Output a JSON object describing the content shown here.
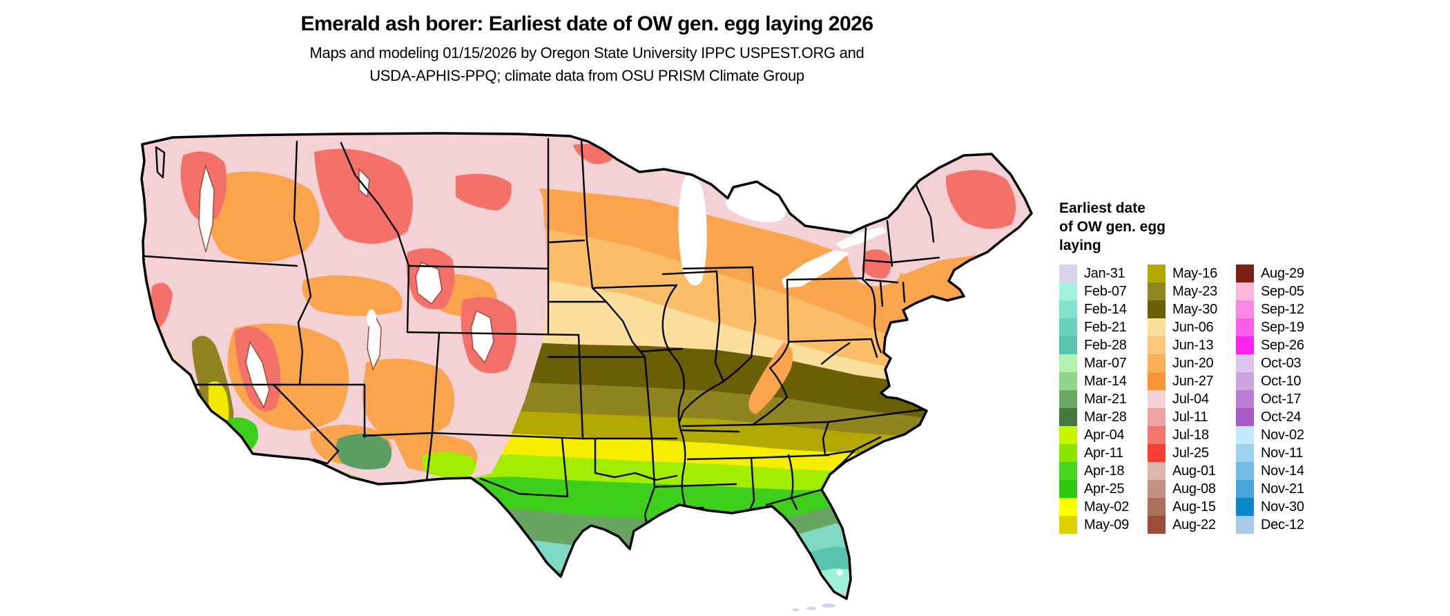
{
  "header": {
    "title": "Emerald ash borer: Earliest date of OW gen. egg laying 2026",
    "subtitle_line1": "Maps and modeling 01/15/2026 by Oregon State University IPPC USPEST.ORG and",
    "subtitle_line2": "USDA-APHIS-PPQ; climate data from OSU PRISM Climate Group"
  },
  "map": {
    "region": "Contiguous United States",
    "description": "Choropleth raster map of earliest date of overwintering generation egg laying, colored by weekly date class with state boundaries"
  },
  "legend": {
    "title_lines": [
      "Earliest date",
      "of OW gen. egg",
      "laying"
    ],
    "columns": [
      {
        "items": [
          {
            "label": "Jan-31",
            "color": "#d9d2ea"
          },
          {
            "label": "Feb-07",
            "color": "#a4f0dd"
          },
          {
            "label": "Feb-14",
            "color": "#83e2cd"
          },
          {
            "label": "Feb-21",
            "color": "#66d2bd"
          },
          {
            "label": "Feb-28",
            "color": "#55c3ae"
          },
          {
            "label": "Mar-07",
            "color": "#b3f2ae"
          },
          {
            "label": "Mar-14",
            "color": "#8dd588"
          },
          {
            "label": "Mar-21",
            "color": "#68a662"
          },
          {
            "label": "Mar-28",
            "color": "#447a40"
          },
          {
            "label": "Apr-04",
            "color": "#c9f500"
          },
          {
            "label": "Apr-11",
            "color": "#8ce500"
          },
          {
            "label": "Apr-18",
            "color": "#46d621"
          },
          {
            "label": "Apr-25",
            "color": "#2fc712"
          },
          {
            "label": "May-02",
            "color": "#ffff00"
          },
          {
            "label": "May-09",
            "color": "#ddd100"
          }
        ]
      },
      {
        "items": [
          {
            "label": "May-16",
            "color": "#b3a900"
          },
          {
            "label": "May-23",
            "color": "#8f8521"
          },
          {
            "label": "May-30",
            "color": "#6b5f06"
          },
          {
            "label": "Jun-06",
            "color": "#fcdf9c"
          },
          {
            "label": "Jun-13",
            "color": "#fcc679"
          },
          {
            "label": "Jun-20",
            "color": "#fcb057"
          },
          {
            "label": "Jun-27",
            "color": "#fa9538"
          },
          {
            "label": "Jul-04",
            "color": "#f3d3d5"
          },
          {
            "label": "Jul-11",
            "color": "#f0a1a3"
          },
          {
            "label": "Jul-18",
            "color": "#f4776f"
          },
          {
            "label": "Jul-25",
            "color": "#fc3d35"
          },
          {
            "label": "Aug-01",
            "color": "#dcb5ad"
          },
          {
            "label": "Aug-08",
            "color": "#c49285"
          },
          {
            "label": "Aug-15",
            "color": "#ac6e5d"
          },
          {
            "label": "Aug-22",
            "color": "#9c4d39"
          }
        ]
      },
      {
        "items": [
          {
            "label": "Aug-29",
            "color": "#7c2115"
          },
          {
            "label": "Sep-05",
            "color": "#fcb5dd"
          },
          {
            "label": "Sep-12",
            "color": "#fa87e5"
          },
          {
            "label": "Sep-19",
            "color": "#fa5de9"
          },
          {
            "label": "Sep-26",
            "color": "#fc25ed"
          },
          {
            "label": "Oct-03",
            "color": "#ddc5ed"
          },
          {
            "label": "Oct-10",
            "color": "#cca5e1"
          },
          {
            "label": "Oct-17",
            "color": "#b97dd5"
          },
          {
            "label": "Oct-24",
            "color": "#a65ac5"
          },
          {
            "label": "Nov-02",
            "color": "#c5e9fc"
          },
          {
            "label": "Nov-11",
            "color": "#9dd5f1"
          },
          {
            "label": "Nov-14",
            "color": "#71bde5"
          },
          {
            "label": "Nov-21",
            "color": "#45a5d9"
          },
          {
            "label": "Nov-30",
            "color": "#0c88c9"
          },
          {
            "label": "Dec-12",
            "color": "#a9c9e9"
          }
        ]
      }
    ]
  }
}
